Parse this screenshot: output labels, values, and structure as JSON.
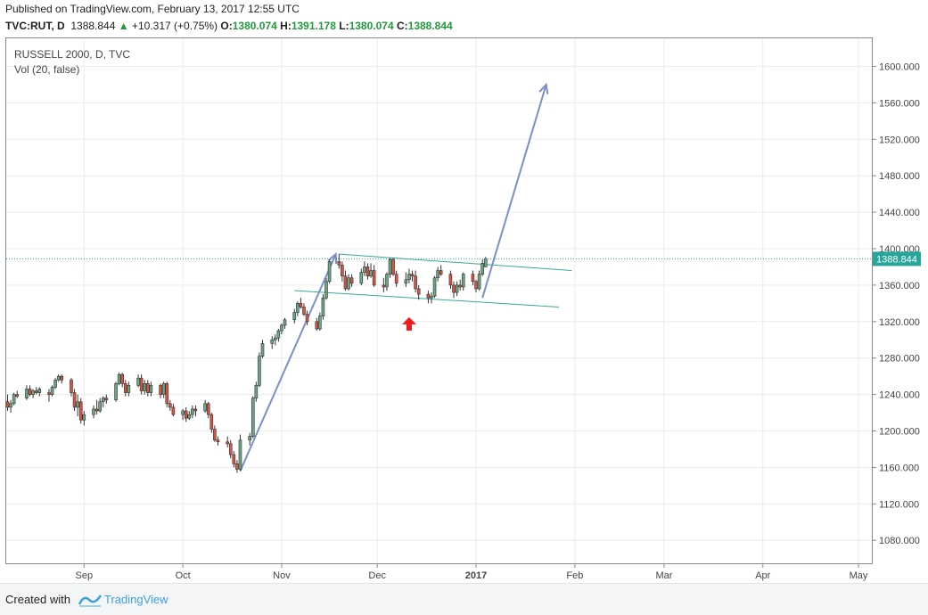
{
  "header": {
    "published": "Published on TradingView.com, February 13, 2017 12:55 UTC",
    "symbol": "TVC:RUT, D",
    "last": "1388.844",
    "change": "+10.317 (+0.75%)",
    "open_label": "O:",
    "open": "1380.074",
    "high_label": "H:",
    "high": "1391.178",
    "low_label": "L:",
    "low": "1380.074",
    "close_label": "C:",
    "close": "1388.844"
  },
  "legend": {
    "title": "RUSSELL 2000, D, TVC",
    "volume": "Vol (20, false)"
  },
  "footer": {
    "created": "Created with",
    "brand": "TradingView"
  },
  "colors": {
    "up": "#6ba583",
    "down": "#d75442",
    "arrow": "#7b8fc9",
    "channel": "#3aa994",
    "marker": "#ee1c1c",
    "price_line": "#26a69a"
  },
  "chart_data": {
    "type": "candlestick",
    "y_axis": {
      "range": [
        1040,
        1620
      ],
      "ticks": [
        "1080.000",
        "1120.000",
        "1160.000",
        "1200.000",
        "1240.000",
        "1280.000",
        "1320.000",
        "1360.000",
        "1400.000",
        "1440.000",
        "1480.000",
        "1520.000",
        "1560.000",
        "1600.000"
      ],
      "side": "right"
    },
    "x_axis": {
      "labels": [
        "Sep",
        "Oct",
        "Nov",
        "Dec",
        "2017",
        "Feb",
        "Mar",
        "Apr",
        "May"
      ],
      "label_days": [
        24,
        55,
        86,
        116,
        147,
        178,
        206,
        237,
        267
      ]
    },
    "last_price_label": "1388.844",
    "last_price": 1388.844,
    "grid": true,
    "candles": [
      [
        0,
        1232,
        1240,
        1222,
        1226
      ],
      [
        1,
        1226,
        1234,
        1220,
        1230
      ],
      [
        2,
        1230,
        1242,
        1228,
        1240
      ],
      [
        3,
        1240,
        1244,
        1236,
        1238
      ],
      [
        6,
        1236,
        1250,
        1234,
        1246
      ],
      [
        7,
        1246,
        1250,
        1238,
        1240
      ],
      [
        8,
        1240,
        1246,
        1236,
        1244
      ],
      [
        9,
        1244,
        1248,
        1240,
        1242
      ],
      [
        10,
        1242,
        1248,
        1238,
        1246
      ],
      [
        13,
        1242,
        1246,
        1232,
        1240
      ],
      [
        14,
        1240,
        1250,
        1238,
        1248
      ],
      [
        15,
        1248,
        1258,
        1246,
        1256
      ],
      [
        16,
        1256,
        1262,
        1254,
        1260
      ],
      [
        17,
        1260,
        1262,
        1252,
        1256
      ],
      [
        20,
        1256,
        1258,
        1238,
        1242
      ],
      [
        21,
        1242,
        1246,
        1222,
        1226
      ],
      [
        22,
        1226,
        1240,
        1216,
        1232
      ],
      [
        23,
        1232,
        1236,
        1208,
        1212
      ],
      [
        24,
        1212,
        1222,
        1206,
        1218
      ],
      [
        27,
        1218,
        1228,
        1214,
        1224
      ],
      [
        28,
        1224,
        1234,
        1218,
        1222
      ],
      [
        29,
        1222,
        1236,
        1220,
        1232
      ],
      [
        30,
        1232,
        1238,
        1226,
        1236
      ],
      [
        31,
        1236,
        1240,
        1230,
        1234
      ],
      [
        34,
        1234,
        1254,
        1232,
        1252
      ],
      [
        35,
        1252,
        1264,
        1250,
        1262
      ],
      [
        36,
        1262,
        1264,
        1248,
        1252
      ],
      [
        37,
        1252,
        1256,
        1238,
        1242
      ],
      [
        38,
        1242,
        1254,
        1238,
        1250
      ],
      [
        41,
        1250,
        1262,
        1248,
        1258
      ],
      [
        42,
        1258,
        1262,
        1240,
        1244
      ],
      [
        43,
        1244,
        1256,
        1240,
        1252
      ],
      [
        44,
        1252,
        1256,
        1238,
        1242
      ],
      [
        45,
        1242,
        1254,
        1238,
        1250
      ],
      [
        48,
        1250,
        1252,
        1236,
        1240
      ],
      [
        49,
        1240,
        1254,
        1236,
        1252
      ],
      [
        50,
        1252,
        1254,
        1226,
        1230
      ],
      [
        51,
        1230,
        1234,
        1222,
        1226
      ],
      [
        52,
        1226,
        1230,
        1216,
        1218
      ],
      [
        55,
        1218,
        1224,
        1212,
        1222
      ],
      [
        56,
        1222,
        1226,
        1210,
        1214
      ],
      [
        57,
        1214,
        1222,
        1212,
        1218
      ],
      [
        58,
        1218,
        1228,
        1214,
        1224
      ],
      [
        59,
        1224,
        1228,
        1216,
        1222
      ],
      [
        62,
        1222,
        1234,
        1220,
        1230
      ],
      [
        63,
        1230,
        1232,
        1214,
        1218
      ],
      [
        64,
        1218,
        1220,
        1198,
        1202
      ],
      [
        65,
        1202,
        1206,
        1188,
        1190
      ],
      [
        66,
        1190,
        1194,
        1184,
        1188
      ],
      [
        69,
        1188,
        1194,
        1182,
        1186
      ],
      [
        70,
        1186,
        1190,
        1170,
        1174
      ],
      [
        71,
        1174,
        1178,
        1160,
        1164
      ],
      [
        72,
        1164,
        1168,
        1154,
        1158
      ],
      [
        73,
        1158,
        1196,
        1156,
        1190
      ],
      [
        76,
        1190,
        1198,
        1184,
        1194
      ],
      [
        77,
        1194,
        1238,
        1192,
        1236
      ],
      [
        78,
        1236,
        1254,
        1232,
        1250
      ],
      [
        79,
        1250,
        1286,
        1248,
        1282
      ],
      [
        80,
        1282,
        1300,
        1280,
        1296
      ],
      [
        83,
        1296,
        1304,
        1290,
        1300
      ],
      [
        84,
        1300,
        1306,
        1294,
        1302
      ],
      [
        85,
        1302,
        1312,
        1298,
        1310
      ],
      [
        86,
        1310,
        1318,
        1306,
        1316
      ],
      [
        87,
        1316,
        1324,
        1312,
        1322
      ],
      [
        90,
        1322,
        1334,
        1318,
        1330
      ],
      [
        91,
        1330,
        1342,
        1326,
        1340
      ],
      [
        92,
        1340,
        1346,
        1334,
        1336
      ],
      [
        93,
        1336,
        1340,
        1326,
        1328
      ],
      [
        94,
        1328,
        1332,
        1316,
        1320
      ],
      [
        97,
        1320,
        1324,
        1310,
        1312
      ],
      [
        98,
        1312,
        1330,
        1310,
        1326
      ],
      [
        99,
        1326,
        1350,
        1322,
        1346
      ],
      [
        100,
        1346,
        1368,
        1344,
        1364
      ],
      [
        101,
        1364,
        1388,
        1362,
        1386
      ],
      [
        104,
        1386,
        1394,
        1378,
        1382
      ],
      [
        105,
        1382,
        1386,
        1364,
        1370
      ],
      [
        106,
        1370,
        1376,
        1354,
        1356
      ],
      [
        107,
        1356,
        1372,
        1354,
        1368
      ],
      [
        108,
        1368,
        1372,
        1358,
        1362
      ],
      [
        111,
        1362,
        1378,
        1360,
        1374
      ],
      [
        112,
        1374,
        1386,
        1370,
        1380
      ],
      [
        113,
        1380,
        1384,
        1366,
        1370
      ],
      [
        114,
        1370,
        1384,
        1368,
        1376
      ],
      [
        115,
        1376,
        1382,
        1358,
        1360
      ],
      [
        118,
        1360,
        1368,
        1352,
        1358
      ],
      [
        119,
        1358,
        1374,
        1354,
        1372
      ],
      [
        120,
        1372,
        1390,
        1368,
        1388
      ],
      [
        121,
        1388,
        1390,
        1370,
        1372
      ],
      [
        122,
        1372,
        1376,
        1358,
        1362
      ],
      [
        125,
        1362,
        1374,
        1358,
        1366
      ],
      [
        126,
        1366,
        1378,
        1362,
        1372
      ],
      [
        127,
        1372,
        1376,
        1364,
        1370
      ],
      [
        128,
        1370,
        1376,
        1352,
        1356
      ],
      [
        129,
        1356,
        1360,
        1344,
        1350
      ],
      [
        132,
        1350,
        1354,
        1340,
        1346
      ],
      [
        133,
        1346,
        1352,
        1340,
        1348
      ],
      [
        134,
        1348,
        1370,
        1346,
        1368
      ],
      [
        135,
        1368,
        1380,
        1364,
        1376
      ],
      [
        136,
        1376,
        1382,
        1370,
        1372
      ],
      [
        139,
        1372,
        1376,
        1356,
        1360
      ],
      [
        140,
        1360,
        1364,
        1346,
        1352
      ],
      [
        141,
        1352,
        1364,
        1348,
        1360
      ],
      [
        142,
        1360,
        1366,
        1354,
        1358
      ],
      [
        143,
        1358,
        1374,
        1354,
        1372
      ],
      [
        146,
        1372,
        1376,
        1360,
        1364
      ],
      [
        147,
        1364,
        1366,
        1352,
        1356
      ],
      [
        148,
        1356,
        1376,
        1354,
        1372
      ],
      [
        149,
        1372,
        1388,
        1370,
        1384
      ],
      [
        150,
        1380,
        1391,
        1380,
        1388.844
      ]
    ],
    "annotations": {
      "arrows": [
        {
          "from": [
            73,
            1156
          ],
          "to": [
            103,
            1394
          ]
        },
        {
          "from": [
            149,
            1346
          ],
          "to": [
            169,
            1580
          ]
        }
      ],
      "channel_lines": [
        {
          "from": [
            104,
            1394
          ],
          "to": [
            177,
            1376
          ]
        },
        {
          "from": [
            90,
            1354
          ],
          "to": [
            173,
            1336
          ]
        }
      ],
      "marker": {
        "day": 126,
        "price": 1317,
        "shape": "up-arrow"
      }
    }
  }
}
